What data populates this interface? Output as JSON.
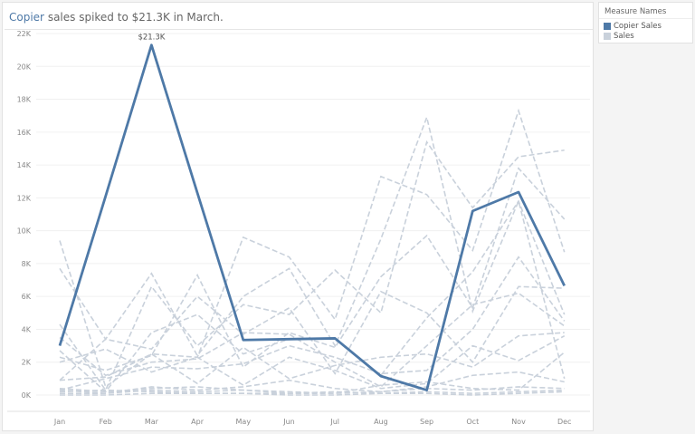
{
  "title": {
    "highlight": "Copier",
    "rest": " sales spiked to $21.3K in March."
  },
  "legend": {
    "title": "Measure Names",
    "items": [
      {
        "label": "Copier Sales",
        "color": "#4e79a7"
      },
      {
        "label": "Sales",
        "color": "#c9d1db"
      }
    ]
  },
  "chart_data": {
    "type": "line",
    "title": "Copier sales spiked to $21.3K in March.",
    "categories": [
      "Jan",
      "Feb",
      "Mar",
      "Apr",
      "May",
      "Jun",
      "Jul",
      "Aug",
      "Sep",
      "Oct",
      "Nov",
      "Dec"
    ],
    "y_ticks": [
      "0K",
      "2K",
      "4K",
      "6K",
      "8K",
      "10K",
      "12K",
      "14K",
      "16K",
      "18K",
      "20K",
      "22K"
    ],
    "ylim": [
      0,
      22000
    ],
    "grid": true,
    "legend_position": "right",
    "annotation": {
      "category": "Mar",
      "text": "$21.3K"
    },
    "highlight_series": {
      "name": "Copier Sales",
      "color": "#4e79a7",
      "values": [
        3000,
        12100,
        21300,
        12300,
        3350,
        3400,
        3450,
        1150,
        300,
        11200,
        12350,
        6650
      ]
    },
    "background_series": {
      "name": "Sales",
      "color": "#c9d1db",
      "lines": [
        [
          9400,
          500,
          2500,
          2300,
          9600,
          8400,
          4600,
          13300,
          12200,
          8800,
          17300,
          8700
        ],
        [
          7700,
          3400,
          7400,
          2400,
          6000,
          7700,
          3000,
          9500,
          16900,
          5100,
          11800,
          1000
        ],
        [
          4300,
          300,
          6600,
          3000,
          5500,
          4900,
          7600,
          5000,
          15400,
          11400,
          14500,
          14900
        ],
        [
          2300,
          1500,
          2400,
          7300,
          1700,
          3800,
          2900,
          7200,
          9700,
          5300,
          13800,
          10700
        ],
        [
          900,
          3400,
          2800,
          6000,
          3700,
          5300,
          1300,
          6300,
          5000,
          2000,
          6600,
          6500
        ],
        [
          2700,
          200,
          3800,
          4900,
          2500,
          3400,
          3400,
          1200,
          4700,
          7500,
          11800,
          4900
        ],
        [
          3500,
          1200,
          2000,
          2200,
          3800,
          3700,
          2000,
          500,
          3000,
          5500,
          6200,
          4200
        ],
        [
          300,
          1000,
          1700,
          1600,
          1900,
          3000,
          2300,
          1300,
          1500,
          4000,
          8400,
          4500
        ],
        [
          2000,
          2800,
          1400,
          2300,
          600,
          2300,
          1500,
          400,
          700,
          3000,
          2100,
          3600
        ],
        [
          900,
          1100,
          2500,
          700,
          2900,
          1000,
          1800,
          2300,
          2500,
          1700,
          3600,
          3800
        ],
        [
          300,
          100,
          500,
          300,
          500,
          900,
          400,
          200,
          500,
          1200,
          1400,
          800
        ],
        [
          400,
          200,
          400,
          500,
          300,
          200,
          100,
          600,
          800,
          400,
          300,
          2600
        ],
        [
          100,
          100,
          300,
          200,
          300,
          100,
          100,
          200,
          400,
          300,
          500,
          400
        ],
        [
          200,
          300,
          200,
          100,
          100,
          100,
          200,
          100,
          200,
          100,
          200,
          300
        ],
        [
          0,
          0,
          100,
          100,
          100,
          0,
          0,
          100,
          100,
          0,
          100,
          200
        ]
      ]
    }
  }
}
